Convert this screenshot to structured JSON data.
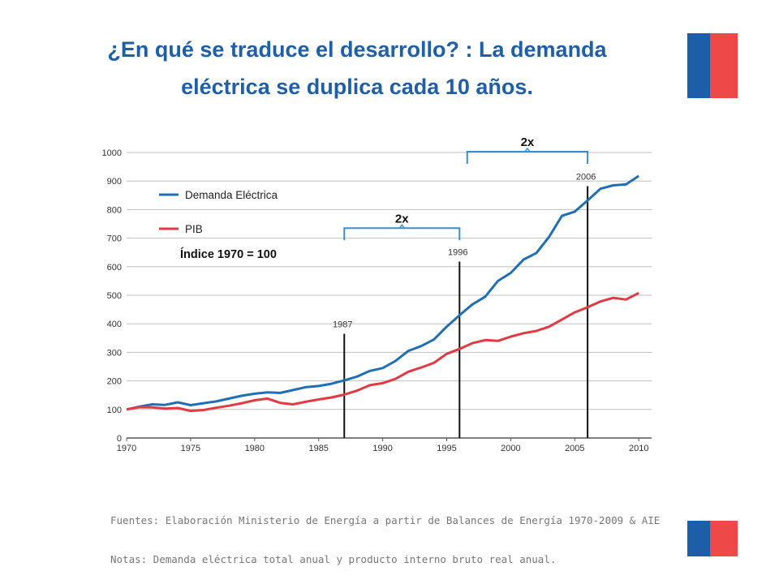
{
  "slide": {
    "title_line1": "¿En qué se traduce el desarrollo? : La demanda",
    "title_line2": "eléctrica se duplica cada 10 años."
  },
  "colors": {
    "title": "#1f5fa8",
    "flag_blue": "#1c5fa8",
    "flag_red": "#ee4848",
    "series_demand": "#1f6fb5",
    "series_pib": "#e23a43",
    "bracket": "#3a8fd0"
  },
  "chart_data": {
    "type": "line",
    "title": "",
    "xlabel": "",
    "ylabel": "",
    "xlim": [
      1970,
      2011
    ],
    "ylim": [
      0,
      1000
    ],
    "x_ticks": [
      1970,
      1975,
      1980,
      1985,
      1990,
      1995,
      2000,
      2005,
      2010
    ],
    "y_ticks": [
      0,
      100,
      200,
      300,
      400,
      500,
      600,
      700,
      800,
      900,
      1000
    ],
    "grid": true,
    "legend_placement": "top-left",
    "index_note": "Índice 1970 = 100",
    "x": [
      1970,
      1971,
      1972,
      1973,
      1974,
      1975,
      1976,
      1977,
      1978,
      1979,
      1980,
      1981,
      1982,
      1983,
      1984,
      1985,
      1986,
      1987,
      1988,
      1989,
      1990,
      1991,
      1992,
      1993,
      1994,
      1995,
      1996,
      1997,
      1998,
      1999,
      2000,
      2001,
      2002,
      2003,
      2004,
      2005,
      2006,
      2007,
      2008,
      2009,
      2010
    ],
    "series": [
      {
        "name": "Demanda Eléctrica",
        "color": "#1f6fb5",
        "values": [
          100,
          110,
          118,
          116,
          125,
          115,
          122,
          128,
          138,
          148,
          155,
          160,
          158,
          168,
          178,
          182,
          190,
          202,
          215,
          235,
          245,
          270,
          305,
          322,
          345,
          390,
          430,
          468,
          495,
          550,
          578,
          625,
          648,
          705,
          778,
          793,
          832,
          873,
          885,
          888,
          918
        ]
      },
      {
        "name": "PIB",
        "color": "#e23a43",
        "values": [
          100,
          108,
          107,
          103,
          105,
          95,
          98,
          106,
          113,
          122,
          132,
          138,
          123,
          118,
          127,
          135,
          142,
          152,
          166,
          185,
          192,
          207,
          232,
          247,
          263,
          295,
          312,
          332,
          343,
          340,
          355,
          367,
          375,
          390,
          415,
          440,
          458,
          478,
          491,
          485,
          508
        ]
      }
    ],
    "vlines": [
      {
        "x": 1987,
        "y_top": 365,
        "label": "1987"
      },
      {
        "x": 1996,
        "y_top": 618,
        "label": "1996"
      },
      {
        "x": 2006,
        "y_top": 882,
        "label": "2006"
      }
    ],
    "brackets": [
      {
        "x_start": 1987,
        "x_end": 1996,
        "y": 735,
        "label": "2x"
      },
      {
        "x_start": 1996.6,
        "x_end": 2006,
        "y": 1003,
        "label": "2x"
      }
    ]
  },
  "footer": {
    "sources": "Fuentes: Elaboración Ministerio de Energía a partir de Balances de Energía 1970-2009 & AIE",
    "notes": "Notas: Demanda eléctrica total anual y producto interno bruto real anual."
  }
}
